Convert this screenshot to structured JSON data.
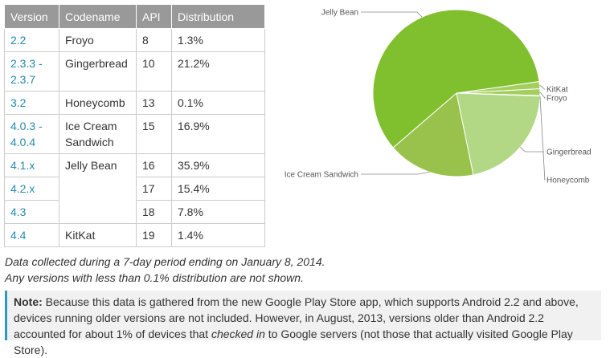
{
  "table": {
    "headers": [
      "Version",
      "Codename",
      "API",
      "Distribution"
    ],
    "rows": [
      {
        "version": "2.2",
        "codename": "Froyo",
        "api": "8",
        "dist": "1.3%"
      },
      {
        "version": "2.3.3 - 2.3.7",
        "codename": "Gingerbread",
        "api": "10",
        "dist": "21.2%"
      },
      {
        "version": "3.2",
        "codename": "Honeycomb",
        "api": "13",
        "dist": "0.1%"
      },
      {
        "version": "4.0.3 - 4.0.4",
        "codename": "Ice Cream Sandwich",
        "api": "15",
        "dist": "16.9%"
      },
      {
        "version": "4.1.x",
        "codename": "Jelly Bean",
        "api": "16",
        "dist": "35.9%"
      },
      {
        "version": "4.2.x",
        "codename": "",
        "api": "17",
        "dist": "15.4%"
      },
      {
        "version": "4.3",
        "codename": "",
        "api": "18",
        "dist": "7.8%"
      },
      {
        "version": "4.4",
        "codename": "KitKat",
        "api": "19",
        "dist": "1.4%"
      }
    ]
  },
  "chart_data": {
    "type": "pie",
    "slices": [
      {
        "label": "Froyo",
        "value": 1.3,
        "color": "#a4cf5f"
      },
      {
        "label": "Gingerbread",
        "value": 21.2,
        "color": "#b2d885"
      },
      {
        "label": "Honeycomb",
        "value": 0.1,
        "color": "#a4cf5f"
      },
      {
        "label": "Ice Cream Sandwich",
        "value": 16.9,
        "color": "#99c24d"
      },
      {
        "label": "Jelly Bean",
        "value": 59.1,
        "color": "#80c02f"
      },
      {
        "label": "KitKat",
        "value": 1.4,
        "color": "#a4cf5f"
      }
    ]
  },
  "footnote": {
    "line1": "Data collected during a 7-day period ending on January 8, 2014.",
    "line2": "Any versions with less than 0.1% distribution are not shown."
  },
  "note": {
    "label": "Note:",
    "text_a": " Because this data is gathered from the new Google Play Store app, which supports Android 2.2 and above, devices running older versions are not included. However, in August, 2013, versions older than Android 2.2 accounted for about 1% of devices that ",
    "emph": "checked in",
    "text_b": " to Google servers (not those that actually visited Google Play Store)."
  },
  "colors": {
    "accent": "#2c9bc4",
    "header_bg": "#999999",
    "link": "#258aaf"
  }
}
